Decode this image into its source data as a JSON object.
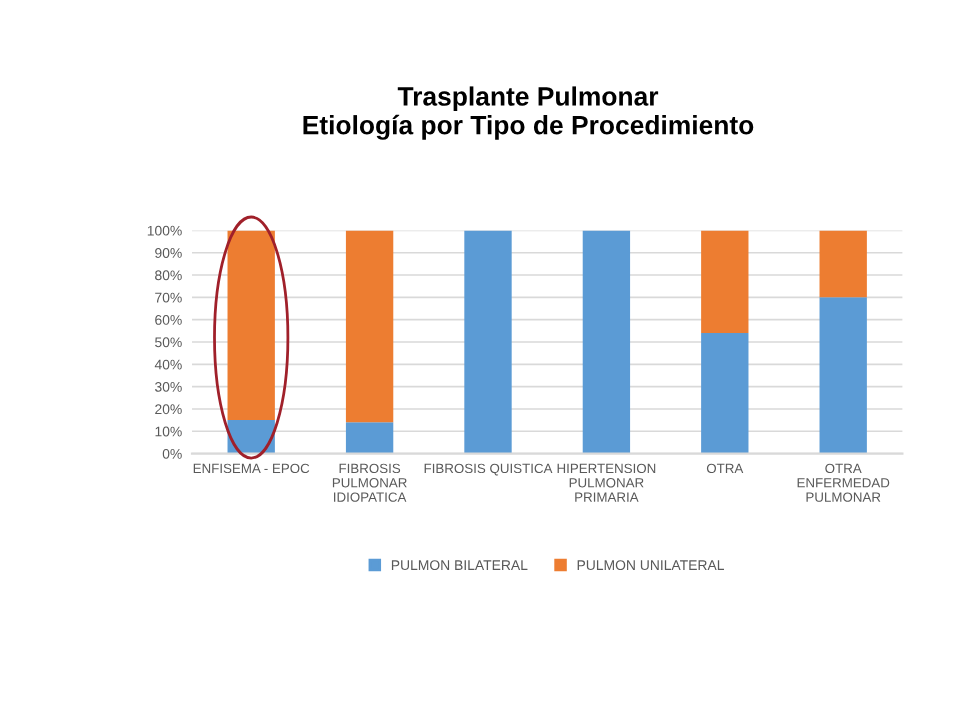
{
  "chart_data": {
    "type": "bar",
    "title": "Trasplante Pulmonar\nEtiología por Tipo de Procedimiento",
    "categories": [
      "ENFISEMA - EPOC",
      "FIBROSIS\nPULMONAR\nIDIOPATICA",
      "FIBROSIS QUISTICA",
      "HIPERTENSION\nPULMONAR\nPRIMARIA",
      "OTRA",
      "OTRA\nENFERMEDAD\nPULMONAR"
    ],
    "series": [
      {
        "name": "PULMON BILATERAL",
        "color": "#5b9bd5",
        "values": [
          15,
          14,
          100,
          100,
          54,
          70
        ]
      },
      {
        "name": "PULMON UNILATERAL",
        "color": "#ed7d31",
        "values": [
          85,
          86,
          0,
          0,
          46,
          30
        ]
      }
    ],
    "stacked": true,
    "ylim": [
      0,
      100
    ],
    "yticks": [
      {
        "value": 0,
        "label": "0%"
      },
      {
        "value": 10,
        "label": "10%"
      },
      {
        "value": 20,
        "label": "20%"
      },
      {
        "value": 30,
        "label": "30%"
      },
      {
        "value": 40,
        "label": "40%"
      },
      {
        "value": 50,
        "label": "50%"
      },
      {
        "value": 60,
        "label": "60%"
      },
      {
        "value": 70,
        "label": "70%"
      },
      {
        "value": 80,
        "label": "80%"
      },
      {
        "value": 90,
        "label": "90%"
      },
      {
        "value": 100,
        "label": "100%"
      }
    ],
    "grid": "y",
    "legend": "bottom"
  }
}
